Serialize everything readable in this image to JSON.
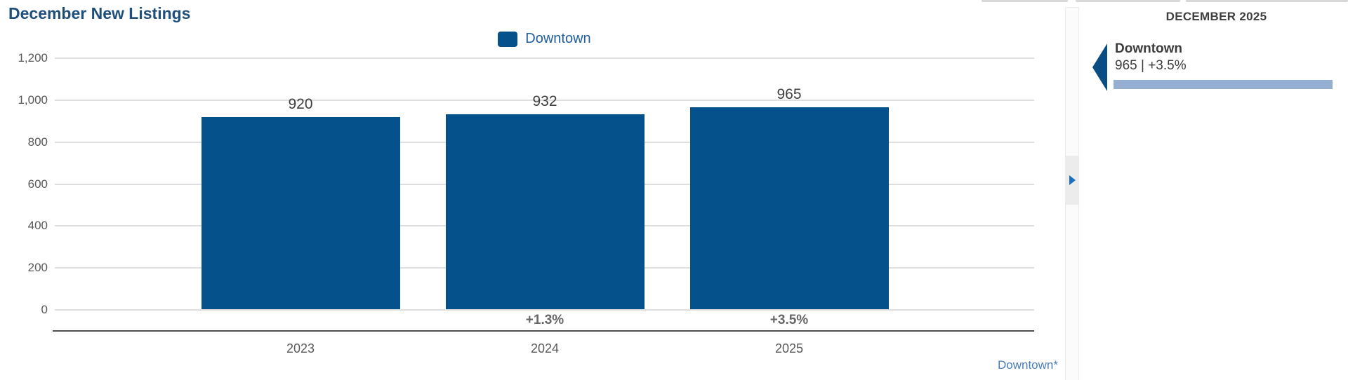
{
  "colors": {
    "bar_blue": "#05518C",
    "title_navy": "#1F4E79",
    "legend_text_blue": "#2060A0",
    "footnote_blue": "#4A7EBC",
    "axis_text_gray": "#595959",
    "value_label_gray": "#3F3F3F",
    "pct_label_gray": "#666666",
    "gridline_gray": "#DEDEDE",
    "axis_line_dark": "#4E4E4E",
    "panel_triangle_navy": "#0A4D84",
    "panel_bar_light_blue": "#94AFD1",
    "splitter_arrow_blue": "#1C6FC0"
  },
  "chart": {
    "title": "December New Listings",
    "legend_label": "Downtown",
    "footnote": "Downtown*"
  },
  "chart_data": {
    "type": "bar",
    "title": "December New Listings",
    "categories": [
      "2023",
      "2024",
      "2025"
    ],
    "series": [
      {
        "name": "Downtown",
        "values": [
          920,
          932,
          965
        ]
      }
    ],
    "value_labels": [
      "920",
      "932",
      "965"
    ],
    "pct_change_labels": [
      "",
      "+1.3%",
      "+3.5%"
    ],
    "ylim": [
      0,
      1200
    ],
    "yticks": [
      0,
      200,
      400,
      600,
      800,
      1000,
      1200
    ],
    "ytick_labels": [
      "0",
      "200",
      "400",
      "600",
      "800",
      "1,000",
      "1,200"
    ],
    "grid": true,
    "legend_position": "top-center"
  },
  "side_panel": {
    "header": "DECEMBER 2025",
    "summary": {
      "series_name": "Downtown",
      "value": "965",
      "pct_change": "+3.5%",
      "value_line": "965 | +3.5%"
    }
  }
}
